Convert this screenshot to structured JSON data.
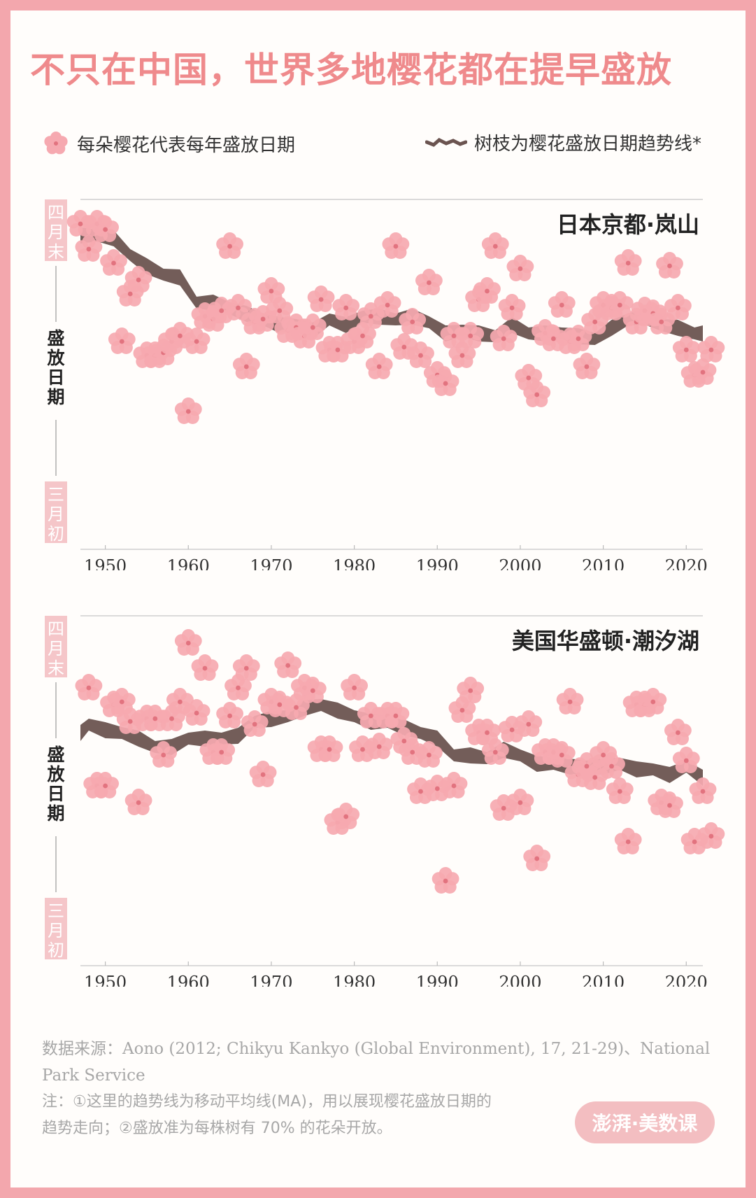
{
  "title": "不只在中国，世界多地樱花都在提早盛放",
  "legend": {
    "flower_label": "每朵樱花代表每年盛放日期",
    "trend_label": "树枝为樱花盛放日期趋势线*"
  },
  "colors": {
    "blossom": "#f6a9b0",
    "blossom_center": "#e2737f",
    "branch": "#6b5450",
    "title": "#ef8a8c",
    "accent_box": "#f5c6c9"
  },
  "footer": {
    "source": "数据来源：Aono (2012; Chikyu Kankyo (Global Environment), 17, 21-29)、National Park Service",
    "note_line1": "注：①这里的趋势线为移动平均线(MA)，用以展现樱花盛放日期的",
    "note_line2": "趋势走向；②盛放准为每株树有 70% 的花朵开放。",
    "logo": "澎湃·美数课"
  },
  "chart_data": [
    {
      "type": "scatter",
      "title": "日本京都·岚山",
      "ylabel": "盛放日期",
      "y_top_label": "四月末",
      "y_bottom_label": "三月初",
      "y_direction": "0 = 三月初 (bottom), 1 = 四月末 (top)",
      "x_ticks": [
        "1950",
        "1960",
        "1970",
        "1980",
        "1990",
        "2000",
        "2010",
        "2020"
      ],
      "xlim": [
        1947,
        2022
      ],
      "ylim": [
        0,
        1
      ],
      "points": [
        [
          1947,
          0.95
        ],
        [
          1948,
          0.86
        ],
        [
          1949,
          0.95
        ],
        [
          1950,
          0.93
        ],
        [
          1951,
          0.81
        ],
        [
          1952,
          0.53
        ],
        [
          1953,
          0.7
        ],
        [
          1954,
          0.75
        ],
        [
          1955,
          0.48
        ],
        [
          1956,
          0.48
        ],
        [
          1957,
          0.49
        ],
        [
          1958,
          0.53
        ],
        [
          1959,
          0.55
        ],
        [
          1960,
          0.28
        ],
        [
          1961,
          0.53
        ],
        [
          1962,
          0.62
        ],
        [
          1963,
          0.61
        ],
        [
          1964,
          0.64
        ],
        [
          1965,
          0.87
        ],
        [
          1966,
          0.65
        ],
        [
          1967,
          0.44
        ],
        [
          1968,
          0.6
        ],
        [
          1969,
          0.61
        ],
        [
          1970,
          0.71
        ],
        [
          1971,
          0.64
        ],
        [
          1972,
          0.57
        ],
        [
          1973,
          0.58
        ],
        [
          1974,
          0.55
        ],
        [
          1975,
          0.58
        ],
        [
          1976,
          0.68
        ],
        [
          1977,
          0.5
        ],
        [
          1978,
          0.5
        ],
        [
          1979,
          0.65
        ],
        [
          1980,
          0.53
        ],
        [
          1981,
          0.55
        ],
        [
          1982,
          0.62
        ],
        [
          1983,
          0.44
        ],
        [
          1984,
          0.66
        ],
        [
          1985,
          0.87
        ],
        [
          1986,
          0.51
        ],
        [
          1987,
          0.6
        ],
        [
          1988,
          0.48
        ],
        [
          1989,
          0.74
        ],
        [
          1990,
          0.41
        ],
        [
          1991,
          0.38
        ],
        [
          1992,
          0.55
        ],
        [
          1993,
          0.48
        ],
        [
          1994,
          0.55
        ],
        [
          1995,
          0.68
        ],
        [
          1996,
          0.71
        ],
        [
          1997,
          0.87
        ],
        [
          1998,
          0.54
        ],
        [
          1999,
          0.65
        ],
        [
          2000,
          0.79
        ],
        [
          2001,
          0.4
        ],
        [
          2002,
          0.34
        ],
        [
          2003,
          0.56
        ],
        [
          2004,
          0.54
        ],
        [
          2005,
          0.66
        ],
        [
          2006,
          0.53
        ],
        [
          2007,
          0.54
        ],
        [
          2008,
          0.44
        ],
        [
          2009,
          0.6
        ],
        [
          2010,
          0.66
        ],
        [
          2011,
          0.65
        ],
        [
          2012,
          0.66
        ],
        [
          2013,
          0.81
        ],
        [
          2014,
          0.6
        ],
        [
          2015,
          0.64
        ],
        [
          2016,
          0.63
        ],
        [
          2017,
          0.6
        ],
        [
          2018,
          0.8
        ],
        [
          2019,
          0.65
        ],
        [
          2020,
          0.5
        ],
        [
          2021,
          0.41
        ],
        [
          2022,
          0.42
        ],
        [
          2023,
          0.5
        ]
      ],
      "trend": [
        [
          1947,
          0.91
        ],
        [
          1949,
          0.91
        ],
        [
          1951,
          0.9
        ],
        [
          1953,
          0.84
        ],
        [
          1955,
          0.8
        ],
        [
          1957,
          0.77
        ],
        [
          1959,
          0.76
        ],
        [
          1961,
          0.67
        ],
        [
          1963,
          0.67
        ],
        [
          1965,
          0.65
        ],
        [
          1967,
          0.63
        ],
        [
          1969,
          0.61
        ],
        [
          1971,
          0.59
        ],
        [
          1973,
          0.59
        ],
        [
          1975,
          0.57
        ],
        [
          1977,
          0.61
        ],
        [
          1979,
          0.59
        ],
        [
          1981,
          0.62
        ],
        [
          1983,
          0.62
        ],
        [
          1985,
          0.61
        ],
        [
          1987,
          0.62
        ],
        [
          1989,
          0.6
        ],
        [
          1991,
          0.56
        ],
        [
          1993,
          0.57
        ],
        [
          1995,
          0.56
        ],
        [
          1997,
          0.55
        ],
        [
          1999,
          0.59
        ],
        [
          2001,
          0.56
        ],
        [
          2003,
          0.56
        ],
        [
          2005,
          0.56
        ],
        [
          2007,
          0.55
        ],
        [
          2009,
          0.54
        ],
        [
          2011,
          0.58
        ],
        [
          2013,
          0.61
        ],
        [
          2015,
          0.62
        ],
        [
          2017,
          0.59
        ],
        [
          2019,
          0.58
        ],
        [
          2021,
          0.56
        ],
        [
          2022,
          0.56
        ]
      ]
    },
    {
      "type": "scatter",
      "title": "美国华盛顿·潮汐湖",
      "ylabel": "盛放日期",
      "y_top_label": "四月末",
      "y_bottom_label": "三月初",
      "y_direction": "0 = 三月初 (bottom), 1 = 四月末 (top)",
      "x_ticks": [
        "1950",
        "1960",
        "1970",
        "1980",
        "1990",
        "2000",
        "2010",
        "2020"
      ],
      "xlim": [
        1947,
        2022
      ],
      "ylim": [
        0,
        1
      ],
      "points": [
        [
          1948,
          0.78
        ],
        [
          1949,
          0.43
        ],
        [
          1950,
          0.43
        ],
        [
          1951,
          0.72
        ],
        [
          1952,
          0.73
        ],
        [
          1953,
          0.66
        ],
        [
          1954,
          0.37
        ],
        [
          1955,
          0.67
        ],
        [
          1956,
          0.67
        ],
        [
          1957,
          0.54
        ],
        [
          1958,
          0.67
        ],
        [
          1959,
          0.73
        ],
        [
          1960,
          0.94
        ],
        [
          1961,
          0.69
        ],
        [
          1962,
          0.85
        ],
        [
          1963,
          0.55
        ],
        [
          1964,
          0.55
        ],
        [
          1965,
          0.68
        ],
        [
          1966,
          0.78
        ],
        [
          1967,
          0.85
        ],
        [
          1968,
          0.65
        ],
        [
          1969,
          0.47
        ],
        [
          1970,
          0.73
        ],
        [
          1971,
          0.72
        ],
        [
          1972,
          0.86
        ],
        [
          1973,
          0.71
        ],
        [
          1974,
          0.78
        ],
        [
          1975,
          0.77
        ],
        [
          1976,
          0.56
        ],
        [
          1977,
          0.56
        ],
        [
          1978,
          0.3
        ],
        [
          1979,
          0.32
        ],
        [
          1980,
          0.78
        ],
        [
          1981,
          0.56
        ],
        [
          1982,
          0.68
        ],
        [
          1983,
          0.57
        ],
        [
          1984,
          0.68
        ],
        [
          1985,
          0.68
        ],
        [
          1986,
          0.59
        ],
        [
          1987,
          0.55
        ],
        [
          1988,
          0.41
        ],
        [
          1989,
          0.54
        ],
        [
          1990,
          0.42
        ],
        [
          1991,
          0.09
        ],
        [
          1992,
          0.43
        ],
        [
          1993,
          0.7
        ],
        [
          1994,
          0.77
        ],
        [
          1995,
          0.62
        ],
        [
          1996,
          0.62
        ],
        [
          1997,
          0.55
        ],
        [
          1998,
          0.35
        ],
        [
          1999,
          0.63
        ],
        [
          2000,
          0.37
        ],
        [
          2001,
          0.65
        ],
        [
          2002,
          0.17
        ],
        [
          2003,
          0.55
        ],
        [
          2004,
          0.55
        ],
        [
          2005,
          0.54
        ],
        [
          2006,
          0.73
        ],
        [
          2007,
          0.47
        ],
        [
          2008,
          0.5
        ],
        [
          2009,
          0.46
        ],
        [
          2010,
          0.54
        ],
        [
          2011,
          0.5
        ],
        [
          2012,
          0.41
        ],
        [
          2013,
          0.23
        ],
        [
          2014,
          0.72
        ],
        [
          2015,
          0.72
        ],
        [
          2016,
          0.73
        ],
        [
          2017,
          0.37
        ],
        [
          2018,
          0.36
        ],
        [
          2019,
          0.62
        ],
        [
          2020,
          0.52
        ],
        [
          2021,
          0.23
        ],
        [
          2022,
          0.41
        ],
        [
          2023,
          0.25
        ]
      ],
      "trend": [
        [
          1947,
          0.62
        ],
        [
          1948,
          0.65
        ],
        [
          1950,
          0.63
        ],
        [
          1952,
          0.62
        ],
        [
          1954,
          0.6
        ],
        [
          1956,
          0.57
        ],
        [
          1958,
          0.57
        ],
        [
          1960,
          0.6
        ],
        [
          1962,
          0.6
        ],
        [
          1964,
          0.6
        ],
        [
          1966,
          0.61
        ],
        [
          1968,
          0.66
        ],
        [
          1970,
          0.67
        ],
        [
          1972,
          0.68
        ],
        [
          1974,
          0.71
        ],
        [
          1976,
          0.72
        ],
        [
          1978,
          0.7
        ],
        [
          1980,
          0.68
        ],
        [
          1982,
          0.66
        ],
        [
          1984,
          0.66
        ],
        [
          1986,
          0.64
        ],
        [
          1988,
          0.62
        ],
        [
          1990,
          0.6
        ],
        [
          1992,
          0.54
        ],
        [
          1994,
          0.54
        ],
        [
          1996,
          0.53
        ],
        [
          1998,
          0.56
        ],
        [
          2000,
          0.54
        ],
        [
          2002,
          0.51
        ],
        [
          2004,
          0.51
        ],
        [
          2006,
          0.5
        ],
        [
          2008,
          0.5
        ],
        [
          2010,
          0.5
        ],
        [
          2012,
          0.51
        ],
        [
          2014,
          0.49
        ],
        [
          2016,
          0.49
        ],
        [
          2018,
          0.47
        ],
        [
          2020,
          0.5
        ],
        [
          2022,
          0.46
        ]
      ]
    }
  ]
}
